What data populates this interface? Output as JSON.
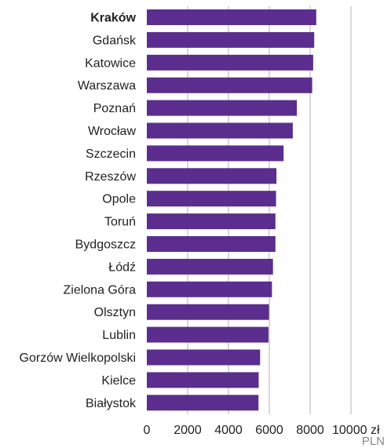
{
  "chart_data": {
    "type": "bar",
    "orientation": "horizontal",
    "categories": [
      "Kraków",
      "Gdańsk",
      "Katowice",
      "Warszawa",
      "Poznań",
      "Wrocław",
      "Szczecin",
      "Rzeszów",
      "Opole",
      "Toruń",
      "Bydgoszcz",
      "Łódź",
      "Zielona Góra",
      "Olsztyn",
      "Lublin",
      "Gorzów Wielkopolski",
      "Kielce",
      "Białystok"
    ],
    "values": [
      8300,
      8200,
      8150,
      8100,
      7350,
      7150,
      6700,
      6350,
      6330,
      6300,
      6300,
      6180,
      6130,
      5980,
      5960,
      5550,
      5480,
      5470
    ],
    "highlighted_category": "Kraków",
    "xlim": [
      0,
      10000
    ],
    "xticks": [
      0,
      2000,
      4000,
      6000,
      8000,
      10000
    ],
    "tick_suffix_last": " zł",
    "unit_label": "PLN",
    "grid": "vertical",
    "colors": {
      "bar": "#5b2d8e",
      "grid": "#b0b0b0",
      "text": "#222222",
      "unit": "#888888"
    }
  }
}
